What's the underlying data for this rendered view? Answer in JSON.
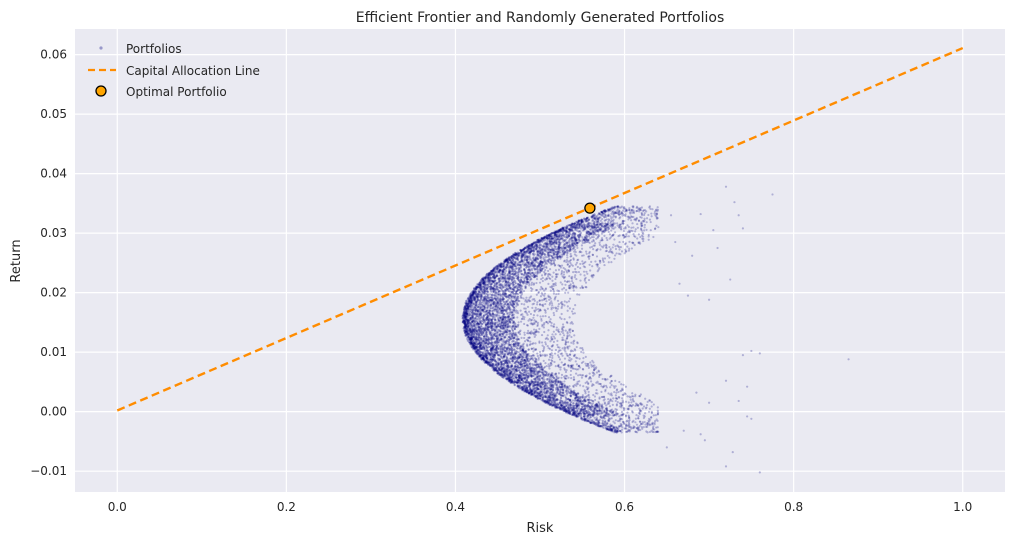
{
  "chart_data": {
    "type": "scatter",
    "title": "Efficient Frontier and Randomly Generated Portfolios",
    "xlabel": "Risk",
    "ylabel": "Return",
    "xlim": [
      -0.05,
      1.05
    ],
    "ylim": [
      -0.0135,
      0.0643
    ],
    "xticks": [
      0.0,
      0.2,
      0.4,
      0.6,
      0.8,
      1.0
    ],
    "xtick_labels": [
      "0.0",
      "0.2",
      "0.4",
      "0.6",
      "0.8",
      "1.0"
    ],
    "yticks": [
      -0.01,
      0.0,
      0.01,
      0.02,
      0.03,
      0.04,
      0.05,
      0.06
    ],
    "ytick_labels": [
      "−0.01",
      "0.00",
      "0.01",
      "0.02",
      "0.03",
      "0.04",
      "0.05",
      "0.06"
    ],
    "grid": true,
    "legend_position": "upper-left",
    "background_color": "#eaeaf2",
    "series": [
      {
        "name": "Portfolios",
        "kind": "scatter",
        "color": "#000080",
        "alpha": 0.25,
        "region": {
          "min_risk_vertex": [
            0.41,
            0.0155
          ],
          "upper_branch_end": [
            0.59,
            0.0345
          ],
          "lower_branch_end": [
            0.6,
            -0.0035
          ]
        },
        "outliers": [
          [
            0.72,
            0.0378
          ],
          [
            0.775,
            0.0365
          ],
          [
            0.73,
            0.0352
          ],
          [
            0.735,
            0.033
          ],
          [
            0.69,
            0.0332
          ],
          [
            0.705,
            0.0305
          ],
          [
            0.74,
            0.0308
          ],
          [
            0.68,
            0.0262
          ],
          [
            0.71,
            0.0275
          ],
          [
            0.725,
            0.0222
          ],
          [
            0.66,
            0.0285
          ],
          [
            0.665,
            0.0215
          ],
          [
            0.675,
            0.0195
          ],
          [
            0.7,
            0.0188
          ],
          [
            0.75,
            0.0102
          ],
          [
            0.76,
            0.0098
          ],
          [
            0.74,
            0.0095
          ],
          [
            0.865,
            0.0088
          ],
          [
            0.72,
            0.0052
          ],
          [
            0.745,
            0.0042
          ],
          [
            0.735,
            0.0018
          ],
          [
            0.685,
            0.0032
          ],
          [
            0.7,
            0.0015
          ],
          [
            0.745,
            -0.0008
          ],
          [
            0.75,
            -0.0012
          ],
          [
            0.67,
            -0.0032
          ],
          [
            0.69,
            -0.0038
          ],
          [
            0.695,
            -0.0048
          ],
          [
            0.72,
            -0.0092
          ],
          [
            0.728,
            -0.0068
          ],
          [
            0.76,
            -0.0102
          ],
          [
            0.65,
            -0.006
          ],
          [
            0.64,
            0.031
          ],
          [
            0.655,
            0.033
          ],
          [
            0.63,
            0.0345
          ]
        ]
      },
      {
        "name": "Capital Allocation Line",
        "kind": "line",
        "style": "dashed",
        "color": "#ff8c00",
        "x": [
          0.0,
          1.0
        ],
        "y": [
          0.0002,
          0.0611
        ]
      },
      {
        "name": "Optimal Portfolio",
        "kind": "point",
        "color": "#ffa500",
        "edge_color": "#000000",
        "x": 0.559,
        "y": 0.0342
      }
    ]
  }
}
